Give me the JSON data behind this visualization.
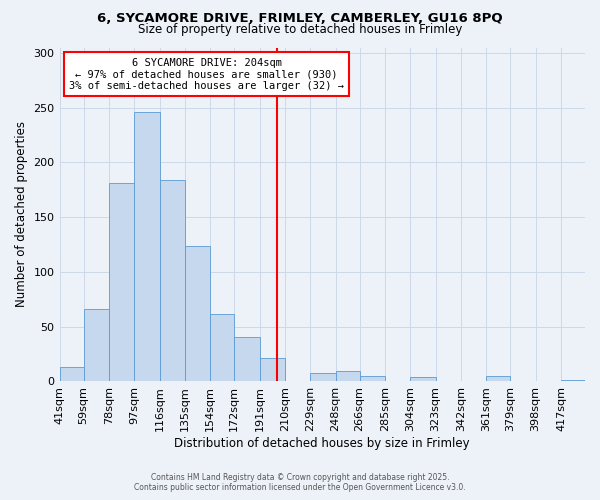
{
  "title": "6, SYCAMORE DRIVE, FRIMLEY, CAMBERLEY, GU16 8PQ",
  "subtitle": "Size of property relative to detached houses in Frimley",
  "xlabel": "Distribution of detached houses by size in Frimley",
  "ylabel": "Number of detached properties",
  "bin_labels": [
    "41sqm",
    "59sqm",
    "78sqm",
    "97sqm",
    "116sqm",
    "135sqm",
    "154sqm",
    "172sqm",
    "191sqm",
    "210sqm",
    "229sqm",
    "248sqm",
    "266sqm",
    "285sqm",
    "304sqm",
    "323sqm",
    "342sqm",
    "361sqm",
    "379sqm",
    "398sqm",
    "417sqm"
  ],
  "bin_edges": [
    41,
    59,
    78,
    97,
    116,
    135,
    154,
    172,
    191,
    210,
    229,
    248,
    266,
    285,
    304,
    323,
    342,
    361,
    379,
    398,
    417
  ],
  "bar_heights": [
    13,
    66,
    181,
    246,
    184,
    124,
    62,
    41,
    21,
    0,
    8,
    10,
    5,
    0,
    4,
    0,
    0,
    5,
    0,
    0,
    1
  ],
  "bar_color": "#c5d8ed",
  "bar_edge_color": "#5b9bd5",
  "vline_x": 204,
  "vline_color": "red",
  "annotation_text": "6 SYCAMORE DRIVE: 204sqm\n← 97% of detached houses are smaller (930)\n3% of semi-detached houses are larger (32) →",
  "annotation_box_color": "white",
  "annotation_box_edge_color": "red",
  "ylim": [
    0,
    305
  ],
  "yticks": [
    0,
    50,
    100,
    150,
    200,
    250,
    300
  ],
  "grid_color": "#ccd8e8",
  "background_color": "#edf2f9",
  "footer_line1": "Contains HM Land Registry data © Crown copyright and database right 2025.",
  "footer_line2": "Contains public sector information licensed under the Open Government Licence v3.0."
}
